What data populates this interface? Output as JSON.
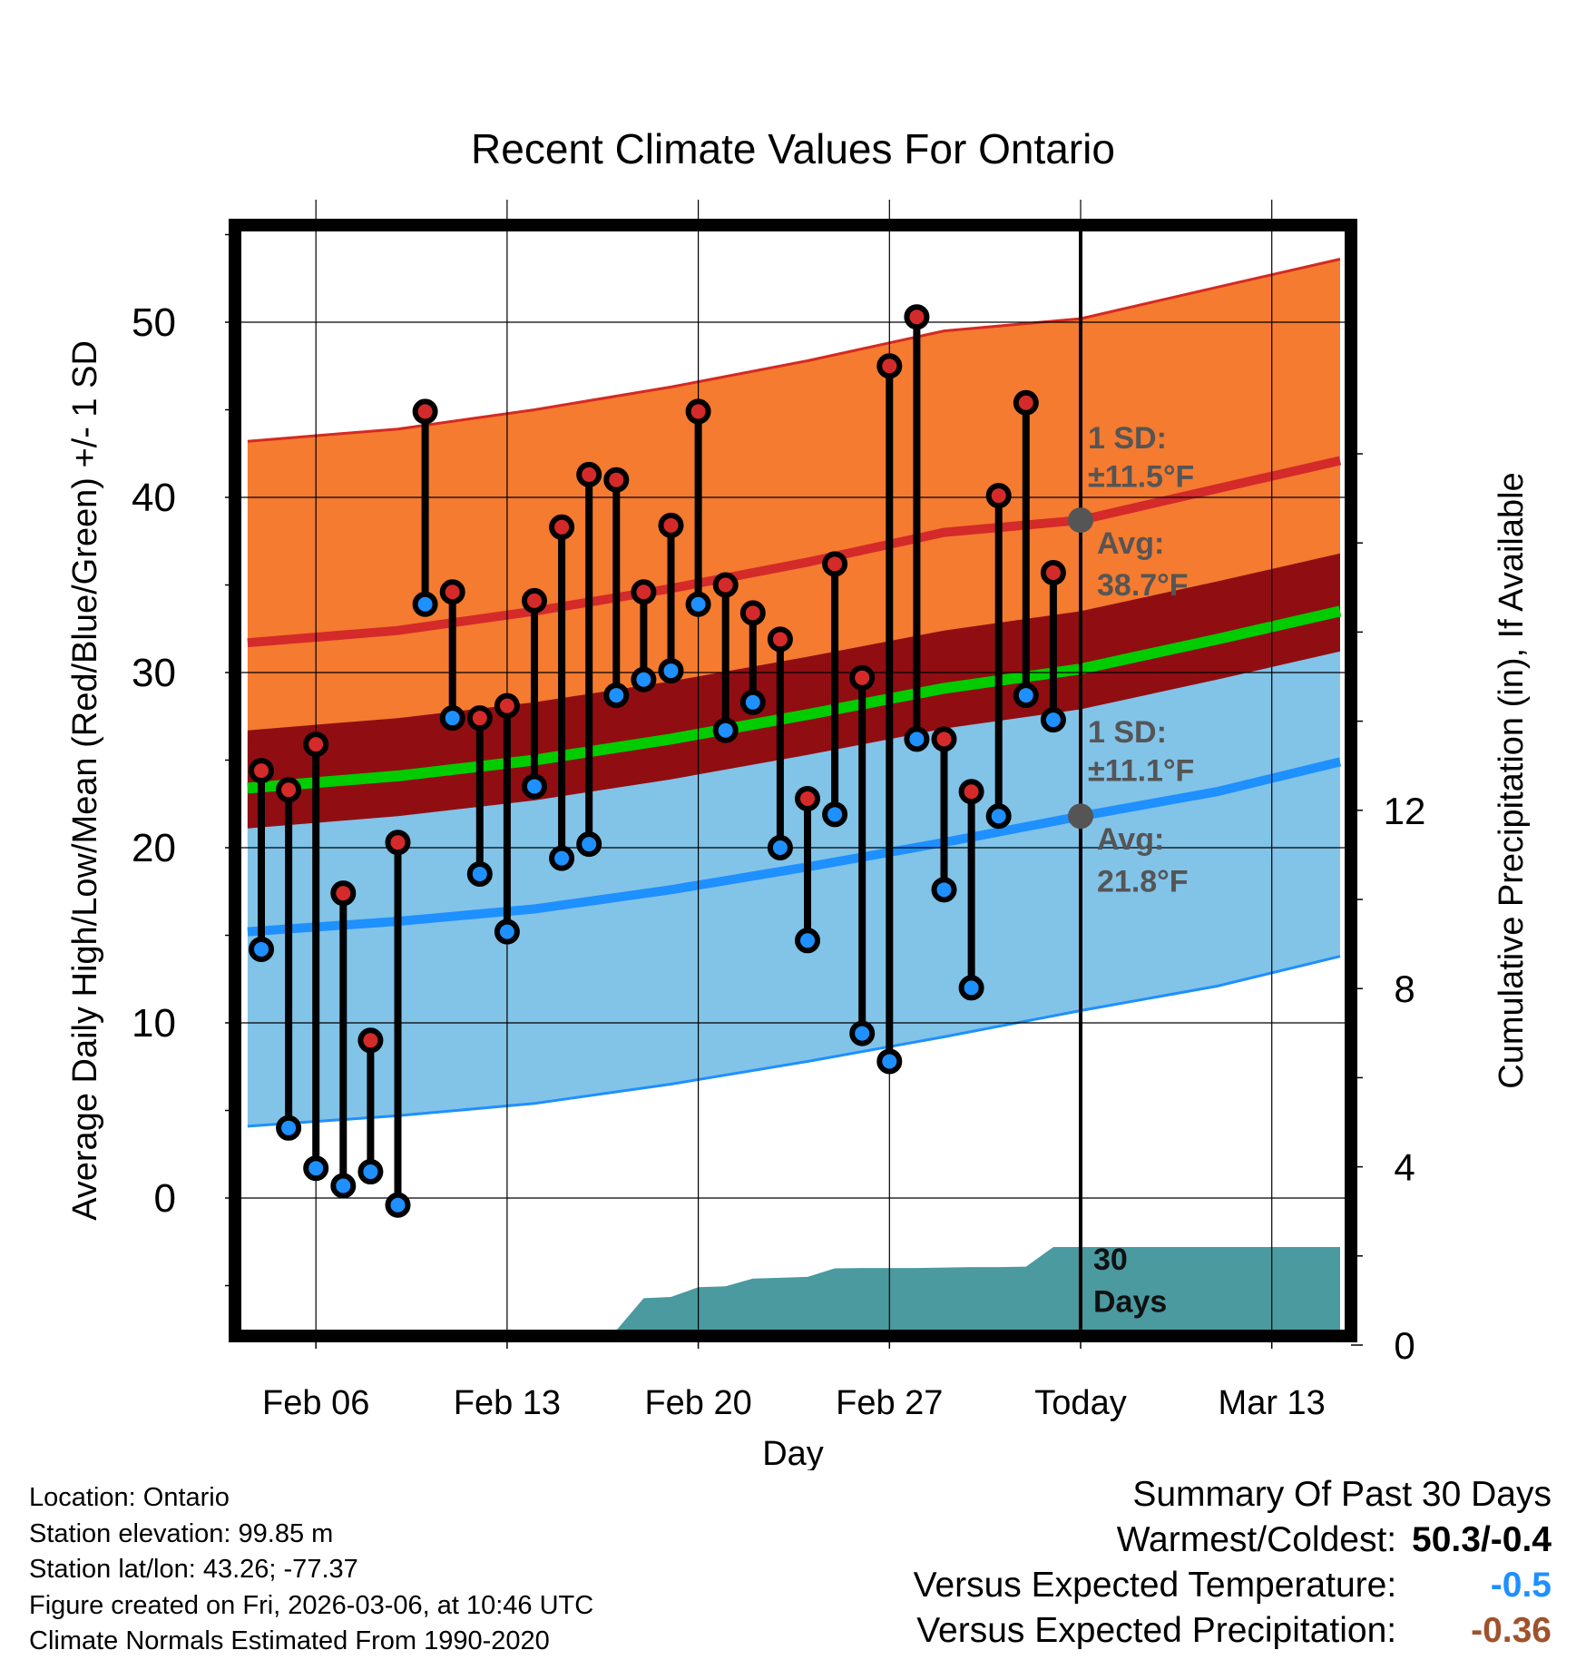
{
  "chart_data": {
    "type": "line",
    "title": "Recent Climate Values For Ontario",
    "xlabel": "Day",
    "ylabel": "Average Daily High/Low/Mean (Red/Blue/Green) +/- 1 SD",
    "y2label": "Cumulative Precipitation (in), If Available",
    "xlim": [
      -1,
      40
    ],
    "ylim": [
      -8,
      55.5
    ],
    "y_ticks": [
      0,
      10,
      20,
      30,
      40,
      50
    ],
    "y2lim": [
      0,
      25
    ],
    "y2_ticks": [
      0,
      4,
      8,
      12
    ],
    "x_ticks": [
      {
        "x": 2,
        "label": "Feb 06"
      },
      {
        "x": 9,
        "label": "Feb 13"
      },
      {
        "x": 16,
        "label": "Feb 20"
      },
      {
        "x": 23,
        "label": "Feb 27"
      },
      {
        "x": 30,
        "label": "Today"
      },
      {
        "x": 37,
        "label": "Mar 13"
      }
    ],
    "today_x": 30,
    "normals": {
      "x": [
        -0.5,
        5,
        10,
        15,
        20,
        25,
        30,
        35,
        39.5
      ],
      "high_mean": [
        31.7,
        32.4,
        33.5,
        34.8,
        36.3,
        38.0,
        38.7,
        40.5,
        42.1
      ],
      "high_sd": 11.5,
      "low_mean": [
        15.2,
        15.8,
        16.5,
        17.6,
        18.9,
        20.3,
        21.8,
        23.2,
        24.9
      ],
      "low_sd": 11.1,
      "mean": [
        23.4,
        24.1,
        25.0,
        26.2,
        27.6,
        29.1,
        30.2,
        31.9,
        33.5
      ],
      "mean_sd": 2.0
    },
    "observations": {
      "x": [
        0,
        1,
        2,
        3,
        4,
        5,
        6,
        7,
        8,
        9,
        10,
        11,
        12,
        13,
        14,
        15,
        16,
        17,
        18,
        19,
        20,
        21,
        22,
        23,
        24,
        25,
        26,
        27,
        28,
        29
      ],
      "high": [
        24.4,
        23.3,
        25.9,
        17.4,
        9.0,
        20.3,
        44.9,
        34.6,
        27.4,
        28.1,
        34.1,
        38.3,
        41.3,
        41.0,
        34.6,
        38.4,
        44.9,
        35.0,
        33.4,
        31.9,
        22.8,
        36.2,
        29.7,
        47.5,
        50.3,
        26.2,
        23.2,
        40.1,
        45.4,
        35.7
      ],
      "low": [
        14.2,
        4.0,
        1.7,
        0.7,
        1.5,
        -0.4,
        33.9,
        27.4,
        18.5,
        15.2,
        23.5,
        19.4,
        20.2,
        28.7,
        29.6,
        30.1,
        33.9,
        26.7,
        28.3,
        20.0,
        14.7,
        21.9,
        9.4,
        7.8,
        26.2,
        17.6,
        12.0,
        21.8,
        28.7,
        27.3
      ]
    },
    "precipitation": {
      "x": [
        -0.5,
        5.5,
        6,
        8,
        10,
        12,
        13,
        14,
        15,
        16,
        17,
        18,
        19,
        20,
        21,
        22,
        23,
        24,
        25,
        26,
        27,
        28,
        29,
        39.5
      ],
      "cumulative": [
        0,
        0,
        0.22,
        0.3,
        0.31,
        0.31,
        0.33,
        1.05,
        1.08,
        1.3,
        1.32,
        1.49,
        1.51,
        1.53,
        1.72,
        1.73,
        1.73,
        1.73,
        1.74,
        1.75,
        1.75,
        1.76,
        2.2,
        2.2
      ]
    },
    "annotations": {
      "high_sd_label": "1 SD:",
      "high_sd_value": "±11.5°F",
      "high_avg_label": "Avg:",
      "high_avg_value": "38.7°F",
      "high_avg_point": 38.7,
      "low_sd_label": "1 SD:",
      "low_sd_value": "±11.1°F",
      "low_avg_label": "Avg:",
      "low_avg_value": "21.8°F",
      "low_avg_point": 21.8,
      "precip_period_line1": "30",
      "precip_period_line2": "Days"
    },
    "colors": {
      "high_band": "#f47b2f",
      "high_band_edge": "#d42a22",
      "high_line": "#d42a2a",
      "mean_band": "#900e12",
      "mean_line": "#00cc00",
      "low_band": "#82c3e8",
      "low_band_edge": "#1e90ff",
      "low_line": "#1e90ff",
      "precip_fill": "#4a9aa0",
      "high_marker": "#d42a2a",
      "low_marker": "#1e90ff",
      "annotation": "#555555"
    }
  },
  "metadata": {
    "location": "Location: Ontario",
    "elevation": "Station elevation: 99.85 m",
    "latlon": "Station lat/lon: 43.26; -77.37",
    "created": "Figure created on Fri, 2026-03-06, at 10:46 UTC",
    "normals": "Climate Normals Estimated From 1990-2020"
  },
  "summary": {
    "title": "Summary Of Past 30 Days",
    "warm_cold_label": "Warmest/Coldest:",
    "warm_cold_value": "50.3/-0.4",
    "temp_label": "Versus Expected Temperature:",
    "temp_value": "-0.5",
    "temp_color": "#1e90ff",
    "precip_label": "Versus Expected Precipitation:",
    "precip_value": "-0.36",
    "precip_color": "#a0522d"
  }
}
